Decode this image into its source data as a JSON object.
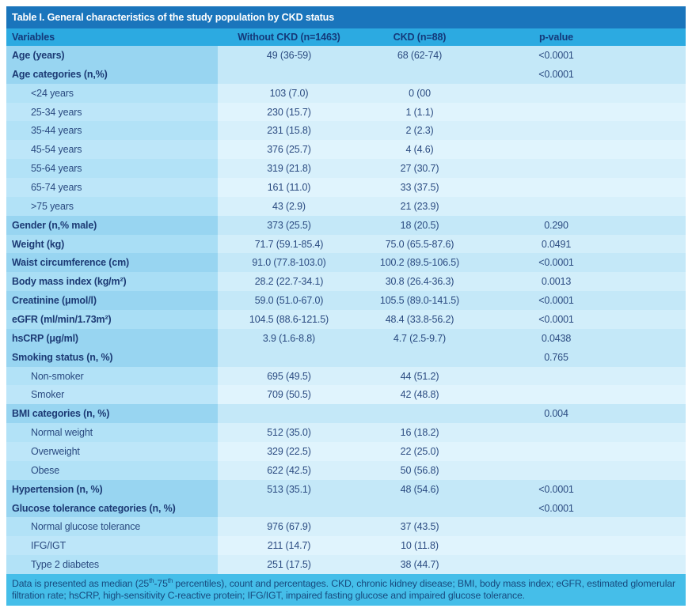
{
  "title": "Table I. General characteristics of the study population by CKD status",
  "colors": {
    "title_bar_bg": "#1a75bc",
    "title_text": "#ffffff",
    "header_bg": "#2caae1",
    "header_text": "#14397a",
    "body_text": "#2a4a80",
    "bold_label_text": "#1c3a74",
    "row_a_label": "#98d5f1",
    "row_a_data": "#c4e8f8",
    "row_b_label": "#a9def5",
    "row_b_data": "#d2eefa",
    "row_s1_label": "#b2e2f7",
    "row_s1_data": "#d7f0fb",
    "row_s2_label": "#bde6f9",
    "row_s2_data": "#e0f4fd",
    "footer_bg": "#45bee9",
    "footer_text": "#174a7e"
  },
  "table": {
    "columns": [
      "Variables",
      "Without CKD (n=1463)",
      "CKD (n=88)",
      "p-value"
    ],
    "rows": [
      {
        "label": "Age (years)",
        "without_ckd": "49 (36-59)",
        "ckd": "68 (62-74)",
        "p": "<0.0001",
        "style": "bold",
        "tone": "a"
      },
      {
        "label": "Age categories (n,%)",
        "without_ckd": "",
        "ckd": "",
        "p": "<0.0001",
        "style": "bold",
        "tone": "a"
      },
      {
        "label": "<24 years",
        "without_ckd": "103 (7.0)",
        "ckd": "0 (00",
        "p": "",
        "style": "sub",
        "tone": "s1"
      },
      {
        "label": "25-34 years",
        "without_ckd": "230 (15.7)",
        "ckd": "1 (1.1)",
        "p": "",
        "style": "sub",
        "tone": "s2"
      },
      {
        "label": "35-44 years",
        "without_ckd": "231 (15.8)",
        "ckd": "2 (2.3)",
        "p": "",
        "style": "sub",
        "tone": "s1"
      },
      {
        "label": "45-54 years",
        "without_ckd": "376 (25.7)",
        "ckd": "4 (4.6)",
        "p": "",
        "style": "sub",
        "tone": "s2"
      },
      {
        "label": "55-64 years",
        "without_ckd": "319 (21.8)",
        "ckd": "27 (30.7)",
        "p": "",
        "style": "sub",
        "tone": "s1"
      },
      {
        "label": "65-74 years",
        "without_ckd": "161 (11.0)",
        "ckd": "33 (37.5)",
        "p": "",
        "style": "sub",
        "tone": "s2"
      },
      {
        "label": ">75 years",
        "without_ckd": "43 (2.9)",
        "ckd": "21 (23.9)",
        "p": "",
        "style": "sub",
        "tone": "s1"
      },
      {
        "label": "Gender (n,% male)",
        "without_ckd": "373 (25.5)",
        "ckd": "18 (20.5)",
        "p": "0.290",
        "style": "bold",
        "tone": "a"
      },
      {
        "label": "Weight (kg)",
        "without_ckd": "71.7 (59.1-85.4)",
        "ckd": "75.0 (65.5-87.6)",
        "p": "0.0491",
        "style": "bold",
        "tone": "b"
      },
      {
        "label": "Waist circumference (cm)",
        "without_ckd": "91.0 (77.8-103.0)",
        "ckd": "100.2 (89.5-106.5)",
        "p": "<0.0001",
        "style": "bold",
        "tone": "a"
      },
      {
        "label": "Body mass index (kg/m²)",
        "without_ckd": "28.2 (22.7-34.1)",
        "ckd": "30.8 (26.4-36.3)",
        "p": "0.0013",
        "style": "bold",
        "tone": "b"
      },
      {
        "label": "Creatinine (μmol/l)",
        "without_ckd": "59.0 (51.0-67.0)",
        "ckd": "105.5 (89.0-141.5)",
        "p": "<0.0001",
        "style": "bold",
        "tone": "a"
      },
      {
        "label": "eGFR (ml/min/1.73m²)",
        "without_ckd": "104.5 (88.6-121.5)",
        "ckd": "48.4 (33.8-56.2)",
        "p": "<0.0001",
        "style": "bold",
        "tone": "b"
      },
      {
        "label": "hsCRP (μg/ml)",
        "without_ckd": "3.9 (1.6-8.8)",
        "ckd": "4.7 (2.5-9.7)",
        "p": "0.0438",
        "style": "bold",
        "tone": "a"
      },
      {
        "label": "Smoking status (n, %)",
        "without_ckd": "",
        "ckd": "",
        "p": "0.765",
        "style": "bold",
        "tone": "a"
      },
      {
        "label": "Non-smoker",
        "without_ckd": "695 (49.5)",
        "ckd": "44 (51.2)",
        "p": "",
        "style": "sub",
        "tone": "s1"
      },
      {
        "label": "Smoker",
        "without_ckd": "709 (50.5)",
        "ckd": "42 (48.8)",
        "p": "",
        "style": "sub",
        "tone": "s2"
      },
      {
        "label": "BMI categories (n, %)",
        "without_ckd": "",
        "ckd": "",
        "p": "0.004",
        "style": "bold",
        "tone": "a"
      },
      {
        "label": "Normal weight",
        "without_ckd": "512 (35.0)",
        "ckd": "16 (18.2)",
        "p": "",
        "style": "sub",
        "tone": "s1"
      },
      {
        "label": "Overweight",
        "without_ckd": "329 (22.5)",
        "ckd": "22 (25.0)",
        "p": "",
        "style": "sub",
        "tone": "s2"
      },
      {
        "label": "Obese",
        "without_ckd": "622 (42.5)",
        "ckd": "50 (56.8)",
        "p": "",
        "style": "sub",
        "tone": "s1"
      },
      {
        "label": "Hypertension (n, %)",
        "without_ckd": "513 (35.1)",
        "ckd": "48 (54.6)",
        "p": "<0.0001",
        "style": "bold",
        "tone": "a"
      },
      {
        "label": "Glucose tolerance categories (n, %)",
        "without_ckd": "",
        "ckd": "",
        "p": "<0.0001",
        "style": "bold",
        "tone": "a"
      },
      {
        "label": "Normal glucose tolerance",
        "without_ckd": "976 (67.9)",
        "ckd": "37 (43.5)",
        "p": "",
        "style": "sub",
        "tone": "s1"
      },
      {
        "label": "IFG/IGT",
        "without_ckd": "211 (14.7)",
        "ckd": "10 (11.8)",
        "p": "",
        "style": "sub",
        "tone": "s2"
      },
      {
        "label": "Type 2 diabetes",
        "without_ckd": "251 (17.5)",
        "ckd": "38 (44.7)",
        "p": "",
        "style": "sub",
        "tone": "s1"
      }
    ]
  },
  "footnote": {
    "pre": "Data is presented as median (25",
    "sup1": "th",
    "mid": "-75",
    "sup2": "th",
    "post": " percentiles), count and percentages. CKD, chronic kidney disease; BMI, body mass index; eGFR, estimated glomerular filtration rate; hsCRP, high-sensitivity C-reactive protein; IFG/IGT, impaired fasting glucose and impaired glucose tolerance."
  }
}
